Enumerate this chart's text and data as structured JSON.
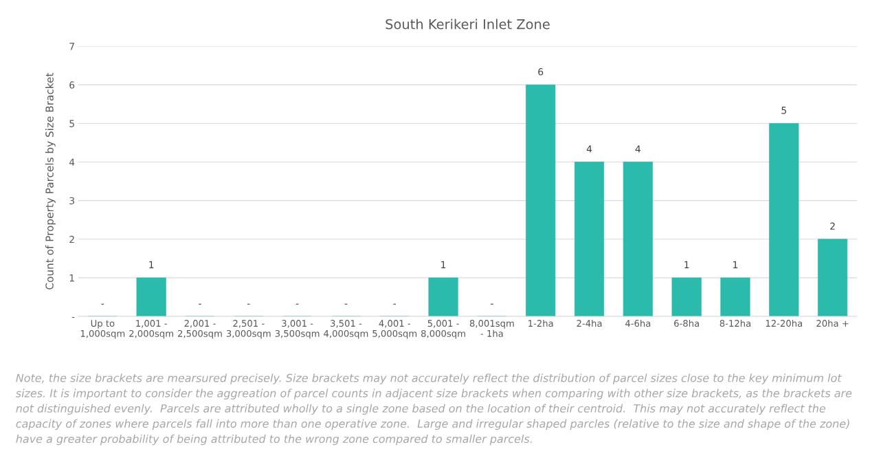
{
  "chart_data": {
    "type": "bar",
    "title": "South Kerikeri Inlet Zone",
    "ylabel": "Count of Property Parcels by Size Bracket",
    "categories": [
      "Up to\n1,000sqm",
      "1,001 -\n2,000sqm",
      "2,001 -\n2,500sqm",
      "2,501 -\n3,000sqm",
      "3,001 -\n3,500sqm",
      "3,501 -\n4,000sqm",
      "4,001 -\n5,000sqm",
      "5,001 -\n8,000sqm",
      "8,001sqm\n- 1ha",
      "1-2ha",
      "2-4ha",
      "4-6ha",
      "6-8ha",
      "8-12ha",
      "12-20ha",
      "20ha +"
    ],
    "values": [
      0,
      1,
      0,
      0,
      0,
      0,
      0,
      1,
      0,
      6,
      4,
      4,
      1,
      1,
      5,
      2
    ],
    "value_labels": [
      "-",
      "1",
      "-",
      "-",
      "-",
      "-",
      "-",
      "1",
      "-",
      "6",
      "4",
      "4",
      "1",
      "1",
      "5",
      "2"
    ],
    "color": "#2bbbad",
    "ylim": [
      0,
      7
    ],
    "yticks": [
      {
        "value": 0,
        "label": "-"
      },
      1,
      2,
      3,
      4,
      5,
      6,
      7
    ],
    "grid": "y",
    "annotations": [
      "Note, the size brackets are mearsured precisely. Size brackets may not accurately reflect the distribution of parcel sizes close to the key minimum lot sizes. It is important to consider the aggreation of parcel counts in adjacent size brackets when comparing with other size brackets, as the brackets are not distinguished evenly.  Parcels are attributed wholly to a single zone based on the location of their centroid.  This may not accurately reflect the capacity of zones where parcels fall into more than one operative zone.  Large and irregular shaped parcles (relative to the size and shape of the zone) have a greater probability of being attributed to the wrong zone compared to smaller parcels."
    ]
  }
}
